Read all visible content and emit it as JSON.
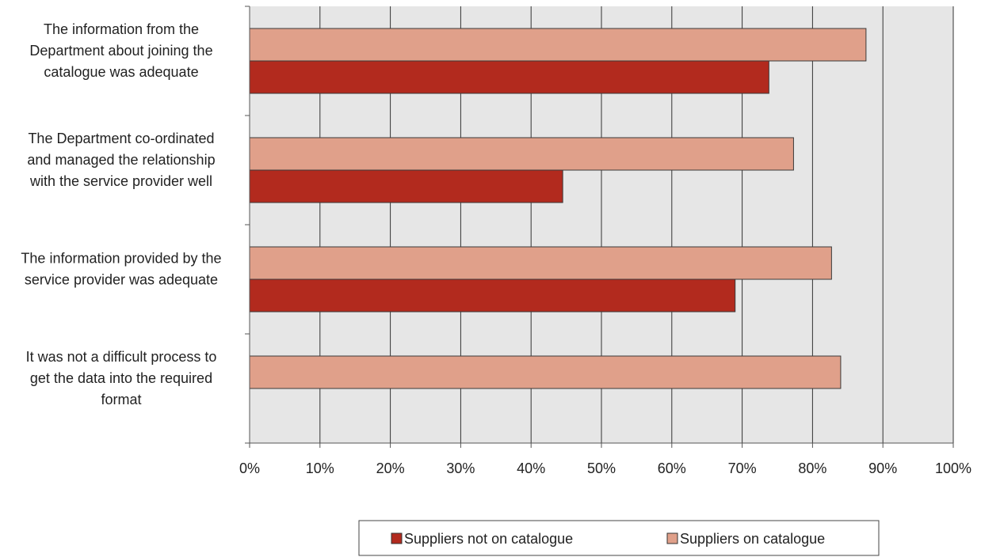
{
  "chart_data": {
    "type": "bar",
    "orientation": "horizontal",
    "categories": [
      [
        "The information from the",
        "Department about joining the",
        "catalogue was adequate"
      ],
      [
        "The Department co-ordinated",
        "and managed the relationship",
        "with the service provider well"
      ],
      [
        "The information provided by the",
        "service provider was adequate"
      ],
      [
        "It was not a difficult process to",
        "get the data into the required",
        "format"
      ]
    ],
    "series": [
      {
        "name": "Suppliers on catalogue",
        "color": "#e0a08a",
        "values": [
          87.6,
          77.3,
          82.7,
          84.0
        ]
      },
      {
        "name": "Suppliers not on catalogue",
        "color": "#b22a1e",
        "values": [
          73.8,
          44.5,
          69.0,
          null
        ]
      }
    ],
    "xlim": [
      0,
      100
    ],
    "xticks": [
      "0%",
      "10%",
      "20%",
      "30%",
      "40%",
      "50%",
      "60%",
      "70%",
      "80%",
      "90%",
      "100%"
    ],
    "grid": true,
    "legend": {
      "placement": "bottom",
      "entries": [
        {
          "label": "Suppliers not on catalogue",
          "color": "#b22a1e"
        },
        {
          "label": "Suppliers on catalogue",
          "color": "#e0a08a"
        }
      ]
    },
    "colors": {
      "plot_background": "#e6e6e6",
      "gridline": "#333333",
      "axis": "#555555"
    }
  }
}
